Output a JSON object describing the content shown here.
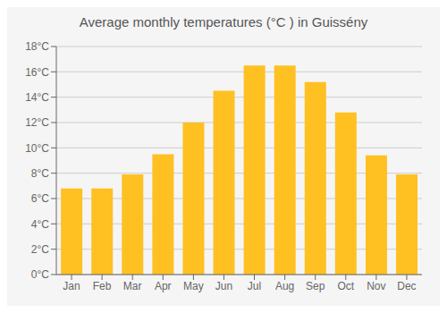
{
  "chart_data": {
    "type": "bar",
    "title": "Average monthly temperatures (°C ) in Guissény",
    "categories": [
      "Jan",
      "Feb",
      "Mar",
      "Apr",
      "May",
      "Jun",
      "Jul",
      "Aug",
      "Sep",
      "Oct",
      "Nov",
      "Dec"
    ],
    "values": [
      6.8,
      6.8,
      7.9,
      9.5,
      12.0,
      14.5,
      16.5,
      16.5,
      15.2,
      12.8,
      9.4,
      7.9
    ],
    "color": "#FFC022",
    "ylim": [
      0,
      18
    ],
    "yticks": [
      {
        "value": 0,
        "label": "0°C"
      },
      {
        "value": 2,
        "label": "2°C"
      },
      {
        "value": 4,
        "label": "4°C"
      },
      {
        "value": 6,
        "label": "6°C"
      },
      {
        "value": 8,
        "label": "8°C"
      },
      {
        "value": 10,
        "label": "10°C"
      },
      {
        "value": 12,
        "label": "12°C"
      },
      {
        "value": 14,
        "label": "14°C"
      },
      {
        "value": 16,
        "label": "16°C"
      },
      {
        "value": 18,
        "label": "18°C"
      }
    ],
    "grid": true
  }
}
